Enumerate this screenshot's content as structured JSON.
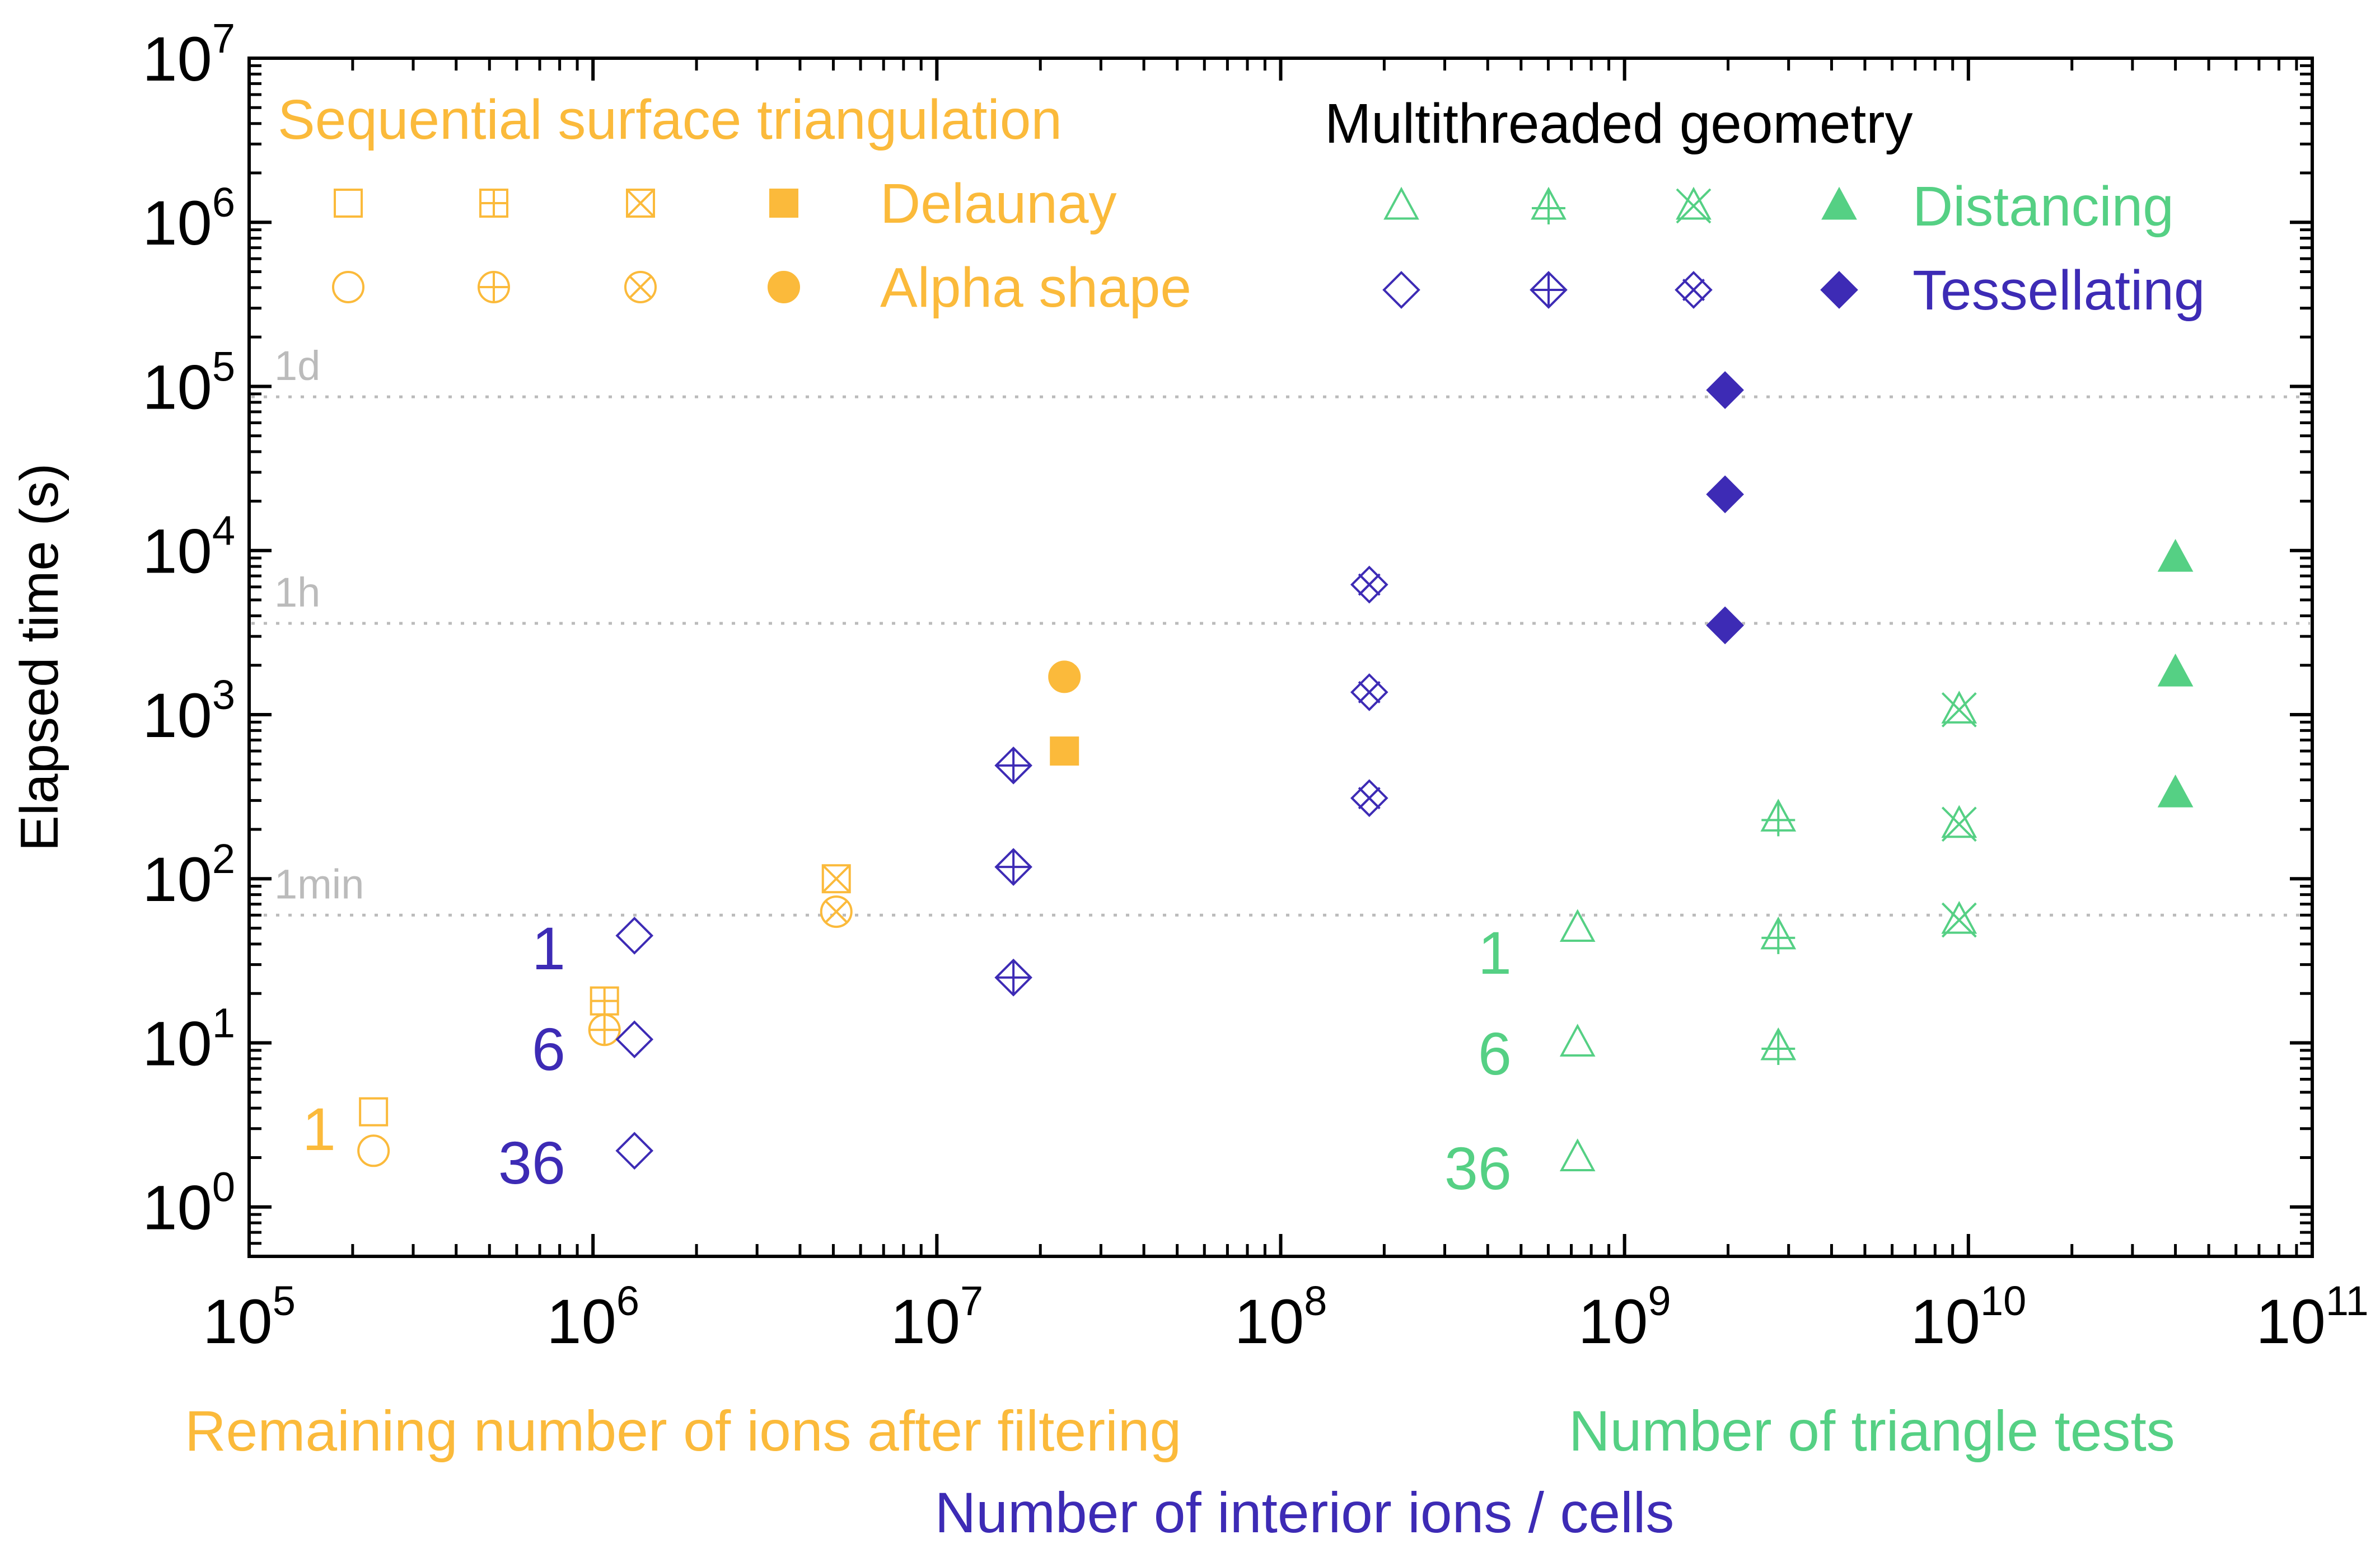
{
  "chart_data": {
    "type": "scatter",
    "ylabel": "Elapsed time (s)",
    "x_axis_labels": [
      {
        "text": "Remaining number of ions after filtering",
        "color": "#FBBA3B"
      },
      {
        "text": "Number of triangle tests",
        "color": "#55D084"
      },
      {
        "text": "Number of interior ions / cells",
        "color": "#3D2BB5"
      }
    ],
    "xscale": "log",
    "yscale": "log",
    "xlim": [
      100000,
      100000000000
    ],
    "ylim": [
      0.5,
      10000000
    ],
    "x_ticks": [
      {
        "value": 100000,
        "base": "10",
        "exp": "5"
      },
      {
        "value": 1000000,
        "base": "10",
        "exp": "6"
      },
      {
        "value": 10000000,
        "base": "10",
        "exp": "7"
      },
      {
        "value": 100000000,
        "base": "10",
        "exp": "8"
      },
      {
        "value": 1000000000,
        "base": "10",
        "exp": "9"
      },
      {
        "value": 10000000000,
        "base": "10",
        "exp": "10"
      },
      {
        "value": 100000000000,
        "base": "10",
        "exp": "11"
      }
    ],
    "y_ticks": [
      {
        "value": 1,
        "base": "10",
        "exp": "0"
      },
      {
        "value": 10,
        "base": "10",
        "exp": "1"
      },
      {
        "value": 100,
        "base": "10",
        "exp": "2"
      },
      {
        "value": 1000,
        "base": "10",
        "exp": "3"
      },
      {
        "value": 10000,
        "base": "10",
        "exp": "4"
      },
      {
        "value": 100000,
        "base": "10",
        "exp": "5"
      },
      {
        "value": 1000000,
        "base": "10",
        "exp": "6"
      },
      {
        "value": 10000000,
        "base": "10",
        "exp": "7"
      }
    ],
    "reference_lines": [
      {
        "label": "1d",
        "value": 86400
      },
      {
        "label": "1h",
        "value": 3600
      },
      {
        "label": "1min",
        "value": 60
      }
    ],
    "colors": {
      "delaunay": "#FBBA3B",
      "alpha": "#FBBA3B",
      "distancing": "#55D084",
      "tessellating": "#3D2BB5",
      "reference": "#BBBBBB",
      "axis": "#000000"
    },
    "legend": {
      "position": "top",
      "group_titles": [
        {
          "text": "Sequential surface triangulation",
          "color": "#FBBA3B"
        },
        {
          "text": "Multithreaded geometry",
          "color": "#000000"
        }
      ],
      "entries": [
        {
          "label": "Delaunay",
          "series": "delaunay"
        },
        {
          "label": "Alpha shape",
          "series": "alpha"
        },
        {
          "label": "Distancing",
          "series": "distancing"
        },
        {
          "label": "Tessellating",
          "series": "tessellating"
        }
      ]
    },
    "thread_counts": [
      "1",
      "6",
      "36"
    ],
    "thread_labels": [
      {
        "series": "delaunay",
        "labels": [
          "1"
        ]
      },
      {
        "series": "tessellating",
        "labels": [
          "1",
          "6",
          "36"
        ]
      },
      {
        "series": "distancing",
        "labels": [
          "1",
          "6",
          "36"
        ]
      }
    ],
    "series": [
      {
        "name": "Delaunay",
        "key": "delaunay",
        "marker": "square",
        "points": [
          {
            "x": 230000,
            "y": 3.8,
            "variant": "open"
          },
          {
            "x": 1080000,
            "y": 18,
            "variant": "plus"
          },
          {
            "x": 5100000,
            "y": 100,
            "variant": "cross"
          },
          {
            "x": 23500000,
            "y": 600,
            "variant": "filled"
          }
        ]
      },
      {
        "name": "Alpha shape",
        "key": "alpha",
        "marker": "circle",
        "points": [
          {
            "x": 230000,
            "y": 2.2,
            "variant": "open"
          },
          {
            "x": 1080000,
            "y": 12,
            "variant": "plus"
          },
          {
            "x": 5100000,
            "y": 63,
            "variant": "cross"
          },
          {
            "x": 23500000,
            "y": 1700,
            "variant": "filled"
          }
        ]
      },
      {
        "name": "Tessellating",
        "key": "tessellating",
        "marker": "diamond",
        "points": [
          {
            "x": 1320000,
            "y": 45,
            "variant": "open"
          },
          {
            "x": 1320000,
            "y": 10.5,
            "variant": "open"
          },
          {
            "x": 1320000,
            "y": 2.2,
            "variant": "open"
          },
          {
            "x": 16700000,
            "y": 490,
            "variant": "plus"
          },
          {
            "x": 16700000,
            "y": 118,
            "variant": "plus"
          },
          {
            "x": 16700000,
            "y": 25,
            "variant": "plus"
          },
          {
            "x": 181000000,
            "y": 6200,
            "variant": "cross"
          },
          {
            "x": 181000000,
            "y": 1370,
            "variant": "cross"
          },
          {
            "x": 181000000,
            "y": 310,
            "variant": "cross"
          },
          {
            "x": 1960000000,
            "y": 95000,
            "variant": "filled"
          },
          {
            "x": 1960000000,
            "y": 22000,
            "variant": "filled"
          },
          {
            "x": 1960000000,
            "y": 3500,
            "variant": "filled"
          }
        ]
      },
      {
        "name": "Distancing",
        "key": "distancing",
        "marker": "triangle",
        "points": [
          {
            "x": 730000000,
            "y": 50,
            "variant": "open"
          },
          {
            "x": 730000000,
            "y": 10,
            "variant": "open"
          },
          {
            "x": 730000000,
            "y": 2,
            "variant": "open"
          },
          {
            "x": 2800000000,
            "y": 235,
            "variant": "plus"
          },
          {
            "x": 2800000000,
            "y": 45,
            "variant": "plus"
          },
          {
            "x": 2800000000,
            "y": 9.5,
            "variant": "plus"
          },
          {
            "x": 9400000000,
            "y": 1070,
            "variant": "cross"
          },
          {
            "x": 9400000000,
            "y": 215,
            "variant": "cross"
          },
          {
            "x": 9400000000,
            "y": 56,
            "variant": "cross"
          },
          {
            "x": 40000000000,
            "y": 9000,
            "variant": "filled"
          },
          {
            "x": 40000000000,
            "y": 1800,
            "variant": "filled"
          },
          {
            "x": 40000000000,
            "y": 330,
            "variant": "filled"
          }
        ]
      }
    ]
  }
}
